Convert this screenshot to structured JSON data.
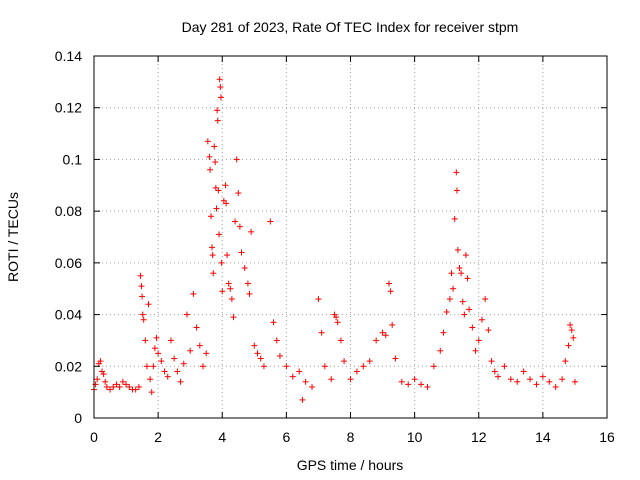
{
  "chart_data": {
    "type": "scatter",
    "title": "Day 281 of 2023, Rate Of TEC Index for receiver stpm",
    "xlabel": "GPS time / hours",
    "ylabel": "ROTI / TECUs",
    "xlim": [
      0,
      16
    ],
    "ylim": [
      0,
      0.14
    ],
    "xticks": [
      0,
      2,
      4,
      6,
      8,
      10,
      12,
      14,
      16
    ],
    "xtick_labels": [
      "0",
      "2",
      "4",
      "6",
      "8",
      "10",
      "12",
      "14",
      "16"
    ],
    "yticks": [
      0,
      0.02,
      0.04,
      0.06,
      0.08,
      0.1,
      0.12,
      0.14
    ],
    "ytick_labels": [
      "0",
      "0.02",
      "0.04",
      "0.06",
      "0.08",
      "0.1",
      "0.12",
      "0.14"
    ],
    "grid": true,
    "marker": "+",
    "color": "#ff0000",
    "series": [
      {
        "name": "ROTI",
        "points": [
          [
            0.0,
            0.011
          ],
          [
            0.05,
            0.013
          ],
          [
            0.1,
            0.015
          ],
          [
            0.15,
            0.021
          ],
          [
            0.2,
            0.022
          ],
          [
            0.25,
            0.018
          ],
          [
            0.3,
            0.017
          ],
          [
            0.35,
            0.014
          ],
          [
            0.4,
            0.012
          ],
          [
            0.5,
            0.011
          ],
          [
            0.6,
            0.012
          ],
          [
            0.7,
            0.013
          ],
          [
            0.8,
            0.012
          ],
          [
            0.9,
            0.014
          ],
          [
            1.0,
            0.013
          ],
          [
            1.1,
            0.012
          ],
          [
            1.2,
            0.011
          ],
          [
            1.3,
            0.011
          ],
          [
            1.4,
            0.012
          ],
          [
            1.45,
            0.055
          ],
          [
            1.48,
            0.051
          ],
          [
            1.5,
            0.047
          ],
          [
            1.52,
            0.04
          ],
          [
            1.55,
            0.038
          ],
          [
            1.6,
            0.03
          ],
          [
            1.65,
            0.02
          ],
          [
            1.7,
            0.044
          ],
          [
            1.75,
            0.015
          ],
          [
            1.8,
            0.01
          ],
          [
            1.85,
            0.02
          ],
          [
            1.9,
            0.027
          ],
          [
            1.95,
            0.031
          ],
          [
            2.0,
            0.025
          ],
          [
            2.1,
            0.022
          ],
          [
            2.2,
            0.018
          ],
          [
            2.3,
            0.016
          ],
          [
            2.4,
            0.03
          ],
          [
            2.5,
            0.023
          ],
          [
            2.6,
            0.018
          ],
          [
            2.7,
            0.014
          ],
          [
            2.8,
            0.021
          ],
          [
            2.9,
            0.04
          ],
          [
            3.0,
            0.026
          ],
          [
            3.1,
            0.048
          ],
          [
            3.2,
            0.035
          ],
          [
            3.3,
            0.028
          ],
          [
            3.4,
            0.02
          ],
          [
            3.5,
            0.025
          ],
          [
            3.55,
            0.107
          ],
          [
            3.6,
            0.101
          ],
          [
            3.62,
            0.096
          ],
          [
            3.65,
            0.078
          ],
          [
            3.68,
            0.066
          ],
          [
            3.7,
            0.063
          ],
          [
            3.72,
            0.056
          ],
          [
            3.75,
            0.105
          ],
          [
            3.78,
            0.099
          ],
          [
            3.8,
            0.089
          ],
          [
            3.82,
            0.081
          ],
          [
            3.84,
            0.119
          ],
          [
            3.86,
            0.115
          ],
          [
            3.88,
            0.088
          ],
          [
            3.9,
            0.071
          ],
          [
            3.92,
            0.131
          ],
          [
            3.94,
            0.128
          ],
          [
            3.96,
            0.124
          ],
          [
            3.98,
            0.06
          ],
          [
            4.0,
            0.049
          ],
          [
            4.05,
            0.084
          ],
          [
            4.1,
            0.09
          ],
          [
            4.12,
            0.083
          ],
          [
            4.15,
            0.063
          ],
          [
            4.2,
            0.052
          ],
          [
            4.25,
            0.05
          ],
          [
            4.3,
            0.046
          ],
          [
            4.35,
            0.039
          ],
          [
            4.4,
            0.076
          ],
          [
            4.45,
            0.1
          ],
          [
            4.5,
            0.087
          ],
          [
            4.55,
            0.074
          ],
          [
            4.6,
            0.064
          ],
          [
            4.7,
            0.058
          ],
          [
            4.8,
            0.052
          ],
          [
            4.85,
            0.048
          ],
          [
            4.9,
            0.072
          ],
          [
            5.0,
            0.028
          ],
          [
            5.1,
            0.025
          ],
          [
            5.2,
            0.023
          ],
          [
            5.3,
            0.02
          ],
          [
            5.5,
            0.076
          ],
          [
            5.6,
            0.037
          ],
          [
            5.7,
            0.03
          ],
          [
            5.8,
            0.024
          ],
          [
            6.0,
            0.02
          ],
          [
            6.2,
            0.016
          ],
          [
            6.4,
            0.018
          ],
          [
            6.5,
            0.007
          ],
          [
            6.6,
            0.014
          ],
          [
            6.8,
            0.012
          ],
          [
            7.0,
            0.046
          ],
          [
            7.1,
            0.033
          ],
          [
            7.2,
            0.02
          ],
          [
            7.4,
            0.015
          ],
          [
            7.5,
            0.04
          ],
          [
            7.55,
            0.039
          ],
          [
            7.6,
            0.037
          ],
          [
            7.7,
            0.03
          ],
          [
            7.8,
            0.022
          ],
          [
            8.0,
            0.015
          ],
          [
            8.2,
            0.018
          ],
          [
            8.4,
            0.02
          ],
          [
            8.6,
            0.022
          ],
          [
            8.8,
            0.03
          ],
          [
            9.0,
            0.033
          ],
          [
            9.1,
            0.032
          ],
          [
            9.2,
            0.052
          ],
          [
            9.25,
            0.049
          ],
          [
            9.3,
            0.036
          ],
          [
            9.4,
            0.023
          ],
          [
            9.6,
            0.014
          ],
          [
            9.8,
            0.013
          ],
          [
            10.0,
            0.015
          ],
          [
            10.2,
            0.013
          ],
          [
            10.4,
            0.012
          ],
          [
            10.6,
            0.02
          ],
          [
            10.8,
            0.026
          ],
          [
            10.9,
            0.033
          ],
          [
            11.0,
            0.041
          ],
          [
            11.1,
            0.046
          ],
          [
            11.15,
            0.056
          ],
          [
            11.2,
            0.05
          ],
          [
            11.25,
            0.077
          ],
          [
            11.3,
            0.095
          ],
          [
            11.32,
            0.088
          ],
          [
            11.35,
            0.065
          ],
          [
            11.4,
            0.058
          ],
          [
            11.45,
            0.056
          ],
          [
            11.5,
            0.045
          ],
          [
            11.55,
            0.04
          ],
          [
            11.6,
            0.063
          ],
          [
            11.65,
            0.054
          ],
          [
            11.7,
            0.042
          ],
          [
            11.8,
            0.035
          ],
          [
            11.9,
            0.026
          ],
          [
            12.0,
            0.03
          ],
          [
            12.1,
            0.038
          ],
          [
            12.2,
            0.046
          ],
          [
            12.3,
            0.034
          ],
          [
            12.4,
            0.022
          ],
          [
            12.5,
            0.018
          ],
          [
            12.6,
            0.016
          ],
          [
            12.8,
            0.02
          ],
          [
            13.0,
            0.015
          ],
          [
            13.2,
            0.014
          ],
          [
            13.4,
            0.018
          ],
          [
            13.6,
            0.015
          ],
          [
            13.8,
            0.013
          ],
          [
            14.0,
            0.016
          ],
          [
            14.2,
            0.014
          ],
          [
            14.4,
            0.012
          ],
          [
            14.6,
            0.015
          ],
          [
            14.7,
            0.022
          ],
          [
            14.8,
            0.028
          ],
          [
            14.85,
            0.036
          ],
          [
            14.9,
            0.034
          ],
          [
            14.95,
            0.031
          ],
          [
            15.0,
            0.014
          ]
        ]
      }
    ]
  }
}
